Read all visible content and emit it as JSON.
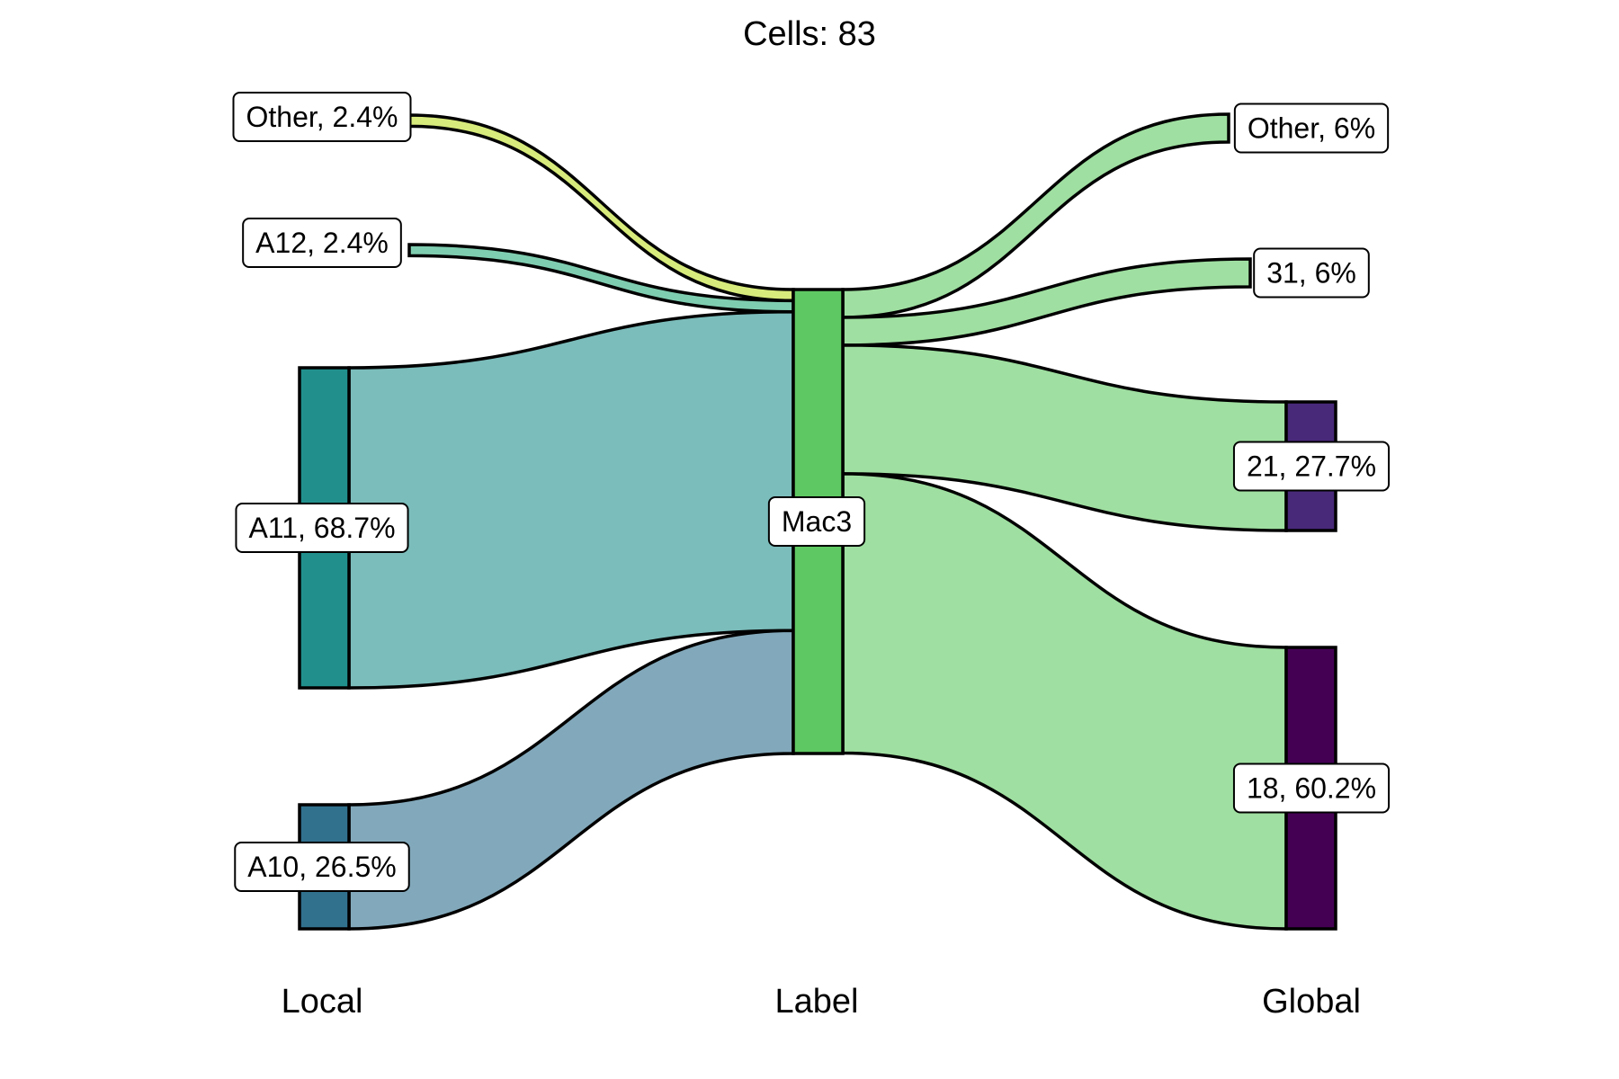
{
  "chart_data": {
    "type": "sankey",
    "title": "Cells:  83",
    "axes": [
      "Local",
      "Label",
      "Global"
    ],
    "left_nodes": [
      {
        "name": "Other",
        "label": "Other, 2.4%",
        "percent": 2.4,
        "color": "#c2df23",
        "flow_color": "#d7eb7c",
        "drawn": false
      },
      {
        "name": "A12",
        "label": "A12, 2.4%",
        "percent": 2.4,
        "color": "#2ab07f",
        "flow_color": "#7fcdb0",
        "drawn": false
      },
      {
        "name": "A11",
        "label": "A11, 68.7%",
        "percent": 68.7,
        "color": "#21908d",
        "flow_color": "#7bbdbb",
        "drawn": true
      },
      {
        "name": "A10",
        "label": "A10, 26.5%",
        "percent": 26.5,
        "color": "#31718e",
        "flow_color": "#82a9bb",
        "drawn": true
      }
    ],
    "center_node": {
      "name": "Mac3",
      "label": "Mac3",
      "percent": 100,
      "color": "#5ec962",
      "flow_color": "#9fdfa1"
    },
    "right_nodes": [
      {
        "name": "Other",
        "label": "Other, 6%",
        "percent": 6.0,
        "color": "#5ec962",
        "drawn": false
      },
      {
        "name": "31",
        "label": "31, 6%",
        "percent": 6.0,
        "color": "#5ec962",
        "drawn": false
      },
      {
        "name": "21",
        "label": "21, 27.7%",
        "percent": 27.7,
        "color": "#482979",
        "drawn": true
      },
      {
        "name": "18",
        "label": "18, 60.2%",
        "percent": 60.2,
        "color": "#440154",
        "drawn": true
      }
    ]
  }
}
